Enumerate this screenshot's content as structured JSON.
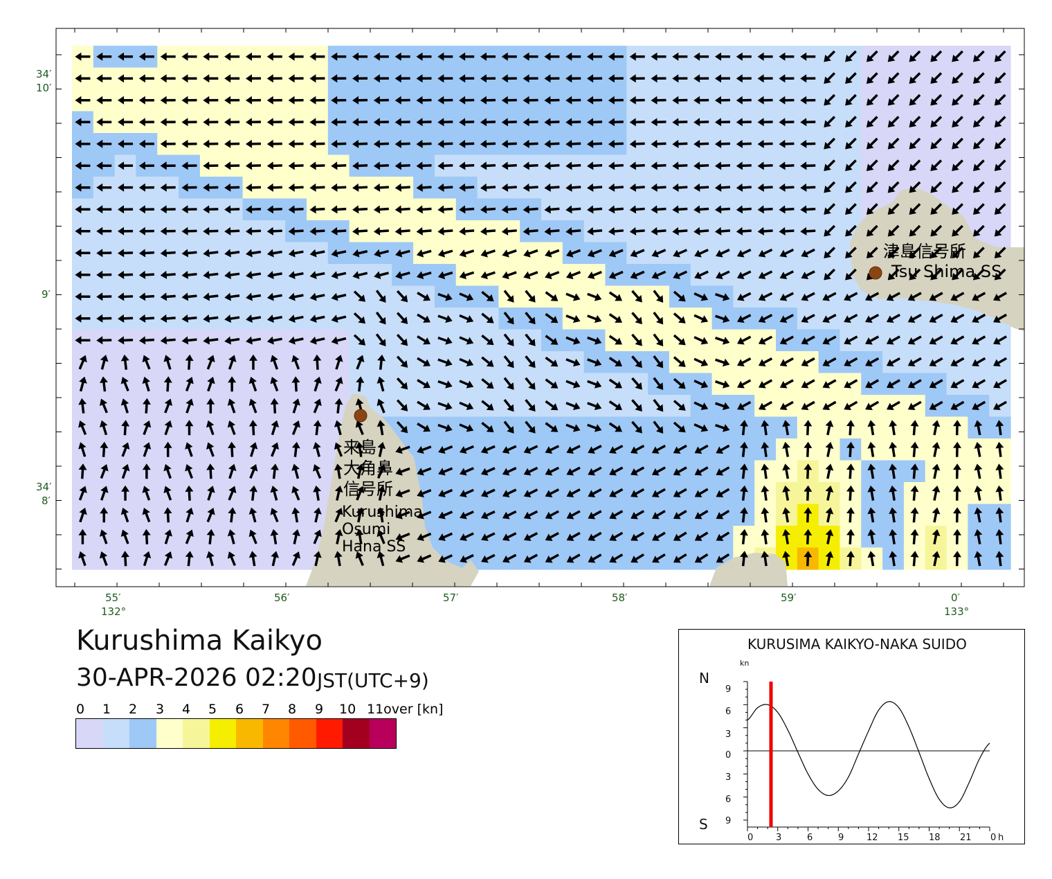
{
  "title": "Kurushima Kaikyo",
  "datetime": "30-APR-2026 02:20",
  "timezone": "JST(UTC+9)",
  "colors": {
    "land": "#d6d3c0",
    "bins": [
      "#d8d7f7",
      "#c6def9",
      "#9ec8f6",
      "#ffffcc",
      "#f6f59a",
      "#f6ee00",
      "#f8b800",
      "#ff8600",
      "#ff5a00",
      "#ff1a00",
      "#a30020",
      "#b8005a"
    ]
  },
  "legend": {
    "labels": [
      "0",
      "1",
      "2",
      "3",
      "4",
      "5",
      "6",
      "7",
      "8",
      "9",
      "10",
      "11over [kn]"
    ]
  },
  "axes": {
    "lat_labels": [
      {
        "text": "34′\n10′"
      },
      {
        "text": "9′"
      },
      {
        "text": "34′\n8′"
      }
    ],
    "lon_labels": [
      {
        "text": "55′\n132°"
      },
      {
        "text": "56′"
      },
      {
        "text": "57′"
      },
      {
        "text": "58′"
      },
      {
        "text": "59′"
      },
      {
        "text": "0′\n133°"
      }
    ]
  },
  "stations": [
    {
      "name_jp": "津島信号所",
      "name_en": "Tsu Shima SS"
    },
    {
      "name_jp_lines": [
        "来島",
        "大角鼻",
        "信号所"
      ],
      "name_en_lines": [
        "Kurushima",
        "Osumi",
        "Hana SS"
      ]
    }
  ],
  "tide_chart": {
    "title": "KURUSIMA KAIKYO-NAKA SUIDO",
    "unit": "kn",
    "north_label": "N",
    "south_label": "S",
    "y_ticks": [
      "9",
      "6",
      "3",
      "0",
      "3",
      "6",
      "9"
    ],
    "x_ticks": [
      "0",
      "3",
      "6",
      "9",
      "12",
      "15",
      "18",
      "21",
      "0"
    ],
    "x_unit": "h",
    "current_hour": 2.33
  },
  "chart_data": {
    "type": "line",
    "title": "KURUSIMA KAIKYO-NAKA SUIDO",
    "xlabel": "h",
    "ylabel": "kn",
    "xlim": [
      0,
      24
    ],
    "ylim": [
      -9,
      9
    ],
    "series": [
      {
        "x": [
          0,
          1,
          2,
          3,
          4,
          5,
          6,
          7,
          8,
          9,
          10,
          11,
          12,
          13,
          14,
          15,
          16,
          17,
          18,
          19,
          20,
          21,
          22,
          23,
          24
        ],
        "y": [
          4.0,
          5.6,
          6.0,
          5.0,
          2.7,
          -0.2,
          -3.0,
          -5.0,
          -5.8,
          -5.2,
          -3.4,
          -0.4,
          2.6,
          5.3,
          6.4,
          5.6,
          3.1,
          -0.2,
          -3.6,
          -6.3,
          -7.4,
          -6.6,
          -4.0,
          -1.0,
          1.0
        ]
      }
    ]
  }
}
